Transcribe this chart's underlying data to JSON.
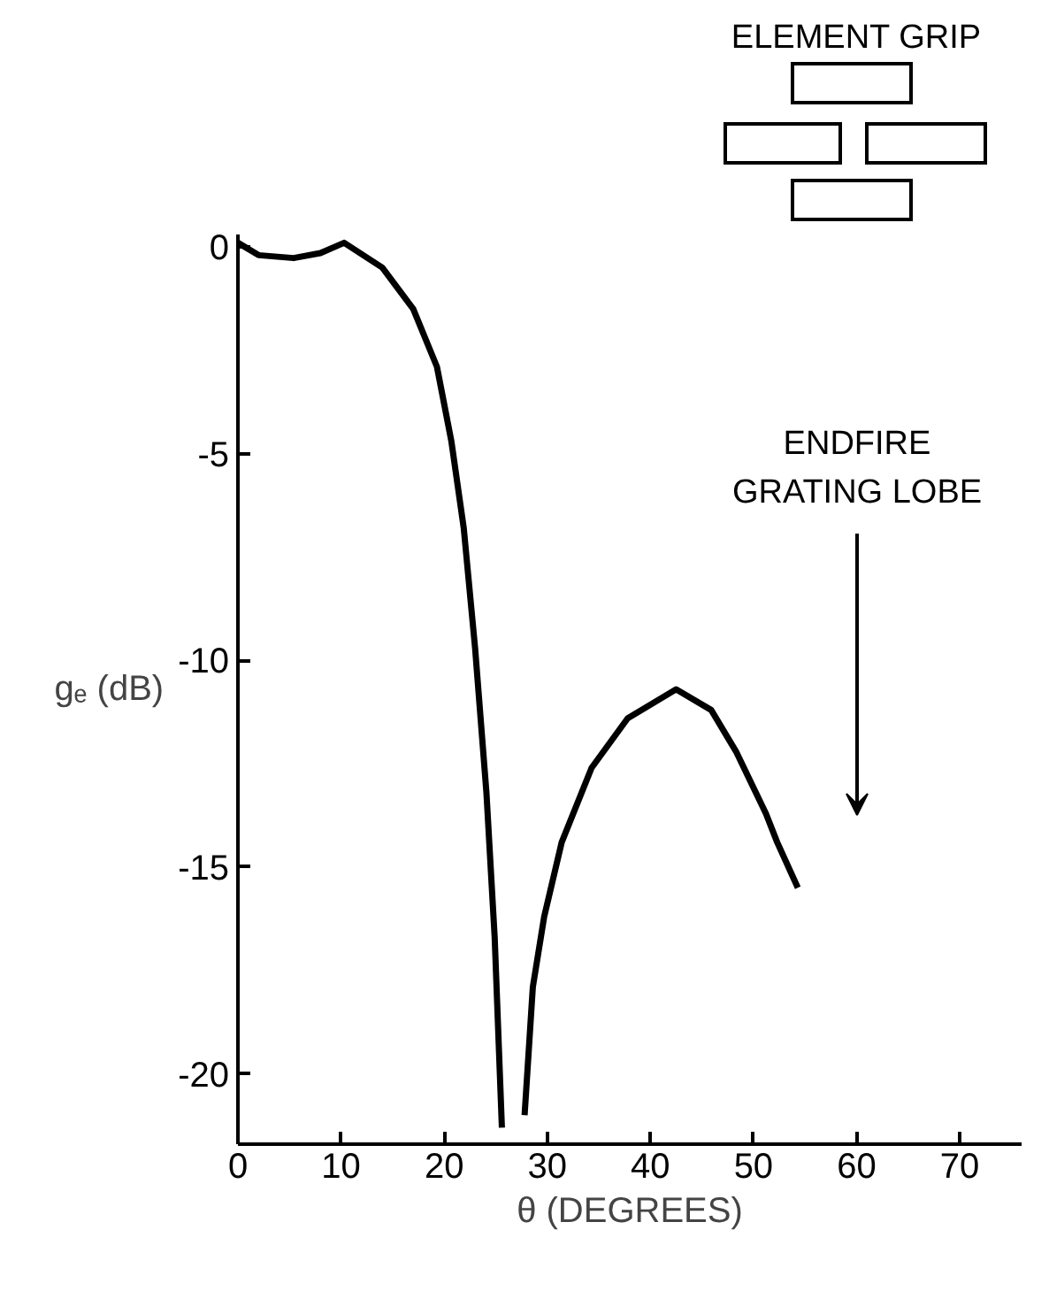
{
  "chart_data": {
    "type": "line",
    "xlabel": "θ (DEGREES)",
    "ylabel": "gₑ (dB)",
    "x": [
      0,
      2,
      5.4,
      8,
      10.3,
      14,
      17,
      19.3,
      20.7,
      21.9,
      23,
      24.1,
      24.9,
      25.6,
      26.7,
      27.8,
      28.6,
      29.7,
      31.4,
      34.3,
      37.8,
      42.5,
      45.9,
      48.3,
      51.2,
      52.3,
      54.3
    ],
    "series": [
      {
        "color": "#000000",
        "values": [
          0.1,
          -0.2,
          -0.27,
          -0.15,
          0.1,
          -0.5,
          -1.5,
          -2.9,
          -4.7,
          -6.8,
          -9.7,
          -13.2,
          -16.7,
          -21.3,
          null,
          -21.0,
          -17.9,
          -16.2,
          -14.4,
          -12.6,
          -11.4,
          -10.7,
          -11.2,
          -12.2,
          -13.7,
          -14.4,
          -15.5
        ]
      }
    ],
    "xlim": [
      0,
      76
    ],
    "ylim": [
      -21.7,
      0.3
    ],
    "xticks": [
      0,
      10,
      20,
      30,
      40,
      50,
      60,
      70
    ],
    "yticks": [
      0,
      -5,
      -10,
      -15,
      -20
    ],
    "grid": false,
    "marker": "none",
    "line_style": "solid",
    "annotations": [
      "ELEMENT GRIP",
      "ENDFIRE GRATING LOBE"
    ]
  }
}
